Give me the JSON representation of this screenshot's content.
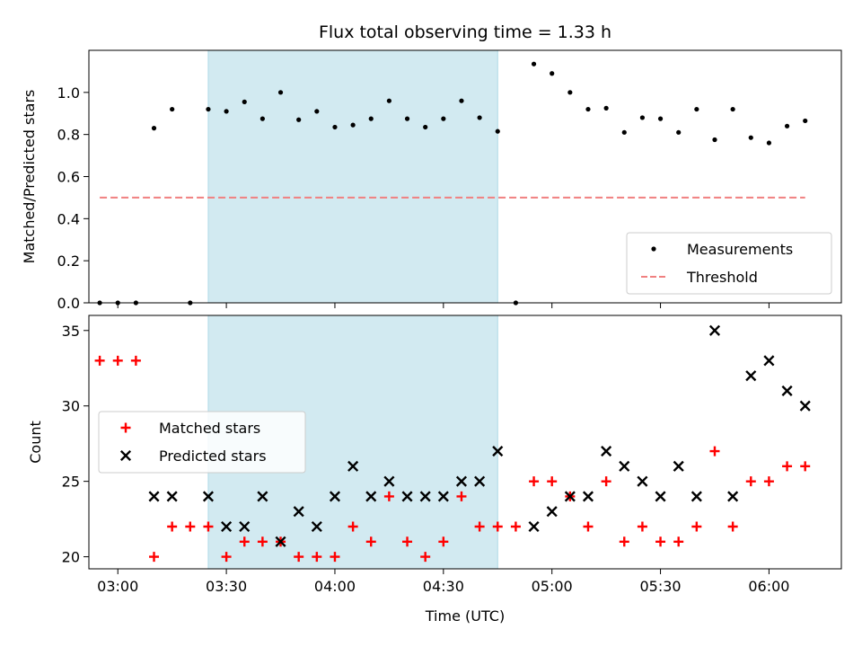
{
  "chart_data": {
    "title": "Flux total observing time = 1.33 h",
    "xlabel": "Time (UTC)",
    "x_ticks": [
      "03:00",
      "03:30",
      "04:00",
      "04:30",
      "05:00",
      "05:30",
      "06:00"
    ],
    "x_range": [
      "02:52",
      "06:20"
    ],
    "highlight_span": [
      "03:25",
      "04:45"
    ],
    "highlight_color": "#add8e6",
    "panels": [
      {
        "type": "scatter",
        "ylabel": "Matched/Predicted stars",
        "ylim": [
          0,
          1.2
        ],
        "y_ticks": [
          "0.0",
          "0.2",
          "0.4",
          "0.6",
          "0.8",
          "1.0"
        ],
        "legend_position": "lower-right",
        "series": [
          {
            "name": "Measurements",
            "marker": "dot",
            "color": "#000000",
            "points": [
              [
                "02:55",
                0.0
              ],
              [
                "03:00",
                0.0
              ],
              [
                "03:05",
                0.0
              ],
              [
                "03:10",
                0.83
              ],
              [
                "03:15",
                0.92
              ],
              [
                "03:20",
                0.0
              ],
              [
                "03:25",
                0.92
              ],
              [
                "03:30",
                0.91
              ],
              [
                "03:35",
                0.955
              ],
              [
                "03:40",
                0.875
              ],
              [
                "03:45",
                1.0
              ],
              [
                "03:50",
                0.87
              ],
              [
                "03:55",
                0.91
              ],
              [
                "04:00",
                0.835
              ],
              [
                "04:05",
                0.845
              ],
              [
                "04:10",
                0.875
              ],
              [
                "04:15",
                0.96
              ],
              [
                "04:20",
                0.875
              ],
              [
                "04:25",
                0.835
              ],
              [
                "04:30",
                0.875
              ],
              [
                "04:35",
                0.96
              ],
              [
                "04:40",
                0.88
              ],
              [
                "04:45",
                0.815
              ],
              [
                "04:50",
                0.0
              ],
              [
                "04:55",
                1.135
              ],
              [
                "05:00",
                1.09
              ],
              [
                "05:05",
                1.0
              ],
              [
                "05:10",
                0.92
              ],
              [
                "05:15",
                0.925
              ],
              [
                "05:20",
                0.81
              ],
              [
                "05:25",
                0.88
              ],
              [
                "05:30",
                0.875
              ],
              [
                "05:35",
                0.81
              ],
              [
                "05:40",
                0.92
              ],
              [
                "05:45",
                0.775
              ],
              [
                "05:50",
                0.92
              ],
              [
                "05:55",
                0.785
              ],
              [
                "06:00",
                0.76
              ],
              [
                "06:05",
                0.84
              ],
              [
                "06:10",
                0.865
              ]
            ]
          },
          {
            "name": "Threshold",
            "marker": "dashed-line",
            "color": "#f08080",
            "points": [
              [
                "02:55",
                0.5
              ],
              [
                "06:10",
                0.5
              ]
            ]
          }
        ]
      },
      {
        "type": "scatter",
        "ylabel": "Count",
        "ylim": [
          19.2,
          36.0
        ],
        "y_ticks": [
          "20",
          "25",
          "30",
          "35"
        ],
        "legend_position": "center-left",
        "series": [
          {
            "name": "Matched stars",
            "marker": "plus",
            "color": "#ff0000",
            "points": [
              [
                "02:55",
                33
              ],
              [
                "03:00",
                33
              ],
              [
                "03:05",
                33
              ],
              [
                "03:10",
                20
              ],
              [
                "03:15",
                22
              ],
              [
                "03:20",
                22
              ],
              [
                "03:25",
                22
              ],
              [
                "03:30",
                20
              ],
              [
                "03:35",
                21
              ],
              [
                "03:40",
                21
              ],
              [
                "03:45",
                21
              ],
              [
                "03:50",
                20
              ],
              [
                "03:55",
                20
              ],
              [
                "04:00",
                20
              ],
              [
                "04:05",
                22
              ],
              [
                "04:10",
                21
              ],
              [
                "04:15",
                24
              ],
              [
                "04:20",
                21
              ],
              [
                "04:25",
                20
              ],
              [
                "04:30",
                21
              ],
              [
                "04:35",
                24
              ],
              [
                "04:40",
                22
              ],
              [
                "04:45",
                22
              ],
              [
                "04:50",
                22
              ],
              [
                "04:55",
                25
              ],
              [
                "05:00",
                25
              ],
              [
                "05:05",
                24
              ],
              [
                "05:10",
                22
              ],
              [
                "05:15",
                25
              ],
              [
                "05:20",
                21
              ],
              [
                "05:25",
                22
              ],
              [
                "05:30",
                21
              ],
              [
                "05:35",
                21
              ],
              [
                "05:40",
                22
              ],
              [
                "05:45",
                27
              ],
              [
                "05:50",
                22
              ],
              [
                "05:55",
                25
              ],
              [
                "06:00",
                25
              ],
              [
                "06:05",
                26
              ],
              [
                "06:10",
                26
              ]
            ]
          },
          {
            "name": "Predicted stars",
            "marker": "x",
            "color": "#000000",
            "points": [
              [
                "03:10",
                24
              ],
              [
                "03:15",
                24
              ],
              [
                "03:25",
                24
              ],
              [
                "03:30",
                22
              ],
              [
                "03:35",
                22
              ],
              [
                "03:40",
                24
              ],
              [
                "03:45",
                21
              ],
              [
                "03:50",
                23
              ],
              [
                "03:55",
                22
              ],
              [
                "04:00",
                24
              ],
              [
                "04:05",
                26
              ],
              [
                "04:10",
                24
              ],
              [
                "04:15",
                25
              ],
              [
                "04:20",
                24
              ],
              [
                "04:25",
                24
              ],
              [
                "04:30",
                24
              ],
              [
                "04:35",
                25
              ],
              [
                "04:40",
                25
              ],
              [
                "04:45",
                27
              ],
              [
                "04:55",
                22
              ],
              [
                "05:00",
                23
              ],
              [
                "05:05",
                24
              ],
              [
                "05:10",
                24
              ],
              [
                "05:15",
                27
              ],
              [
                "05:20",
                26
              ],
              [
                "05:25",
                25
              ],
              [
                "05:30",
                24
              ],
              [
                "05:35",
                26
              ],
              [
                "05:40",
                24
              ],
              [
                "05:45",
                35
              ],
              [
                "05:50",
                24
              ],
              [
                "05:55",
                32
              ],
              [
                "06:00",
                33
              ],
              [
                "06:05",
                31
              ],
              [
                "06:10",
                30
              ]
            ]
          }
        ]
      }
    ]
  }
}
